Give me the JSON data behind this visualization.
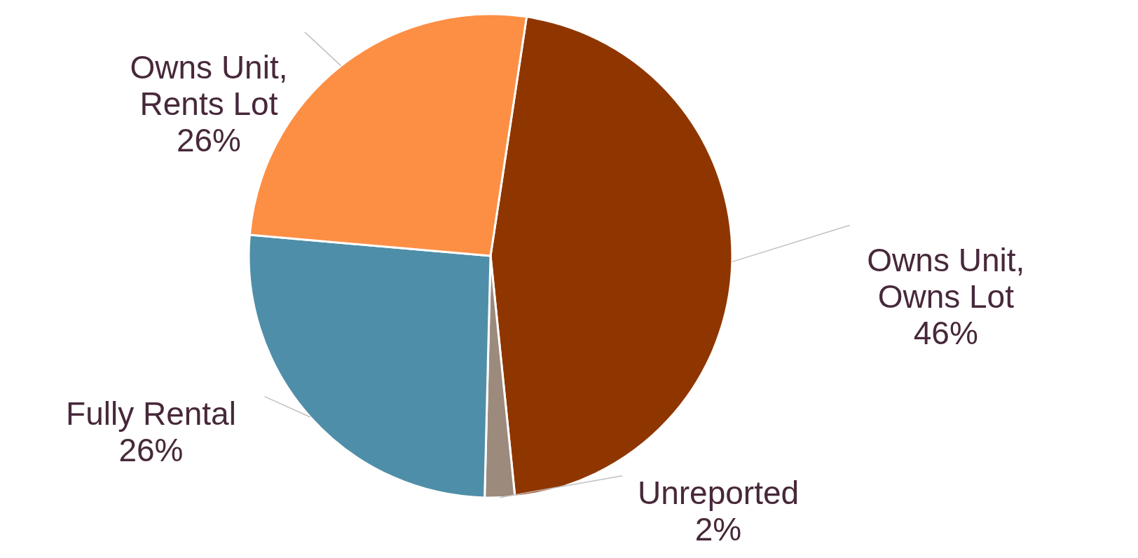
{
  "chart_data": {
    "type": "pie",
    "categories": [
      "Owns Unit, Owns Lot",
      "Unreported",
      "Fully Rental",
      "Owns Unit, Rents Lot"
    ],
    "values": [
      46,
      2,
      26,
      26
    ],
    "value_labels": [
      "46%",
      "2%",
      "26%",
      "26%"
    ],
    "colors": [
      "#8f3600",
      "#9c8b7d",
      "#4f8ea8",
      "#fd8f45"
    ]
  }
}
